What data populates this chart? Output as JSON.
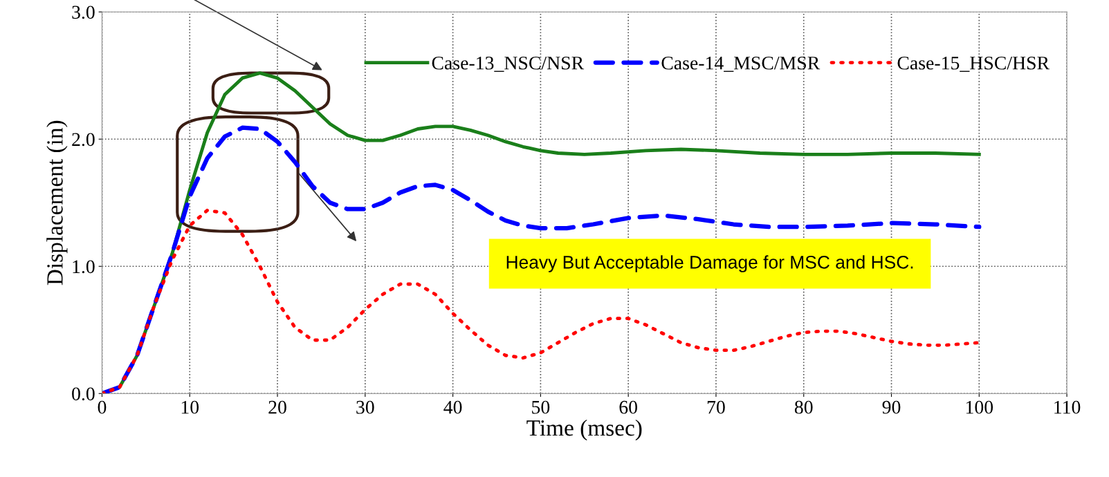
{
  "chart_data": {
    "type": "line",
    "xlabel": "Time (msec)",
    "ylabel": "Displacement (in)",
    "xlim": [
      0,
      110
    ],
    "xticks": [
      0,
      10,
      20,
      30,
      40,
      50,
      60,
      70,
      80,
      90,
      100,
      110
    ],
    "ylim": [
      0,
      3.0
    ],
    "yticks": [
      {
        "value": 0,
        "label": "0.0"
      },
      {
        "value": 1,
        "label": "1.0"
      },
      {
        "value": 2,
        "label": "2.0"
      },
      {
        "value": 3,
        "label": "3.0"
      }
    ],
    "grid": true,
    "legend": "top right",
    "marker": "none",
    "annotations": [
      "Heavy But Acceptable Damage for MSC and HSC."
    ],
    "series": [
      {
        "name": "Case-13_NSC/NSR",
        "color": "#1a7f1a",
        "line_style": "solid",
        "x": [
          0,
          2,
          4,
          6,
          8,
          10,
          12,
          14,
          16,
          18,
          20,
          22,
          24,
          26,
          28,
          30,
          32,
          34,
          36,
          38,
          40,
          42,
          44,
          46,
          48,
          50,
          52,
          55,
          58,
          62,
          66,
          70,
          75,
          80,
          85,
          90,
          95,
          100
        ],
        "values": [
          0,
          0.05,
          0.3,
          0.7,
          1.1,
          1.6,
          2.05,
          2.35,
          2.48,
          2.52,
          2.48,
          2.38,
          2.25,
          2.12,
          2.03,
          1.99,
          1.99,
          2.03,
          2.08,
          2.1,
          2.1,
          2.07,
          2.03,
          1.98,
          1.94,
          1.91,
          1.89,
          1.88,
          1.89,
          1.91,
          1.92,
          1.91,
          1.89,
          1.88,
          1.88,
          1.89,
          1.89,
          1.88
        ]
      },
      {
        "name": "Case-14_MSC/MSR",
        "color": "#0000ff",
        "line_style": "dashed",
        "x": [
          0,
          2,
          4,
          6,
          8,
          10,
          12,
          14,
          16,
          18,
          20,
          22,
          24,
          26,
          28,
          30,
          32,
          34,
          36,
          38,
          40,
          42,
          44,
          46,
          48,
          50,
          53,
          56,
          60,
          64,
          68,
          72,
          76,
          80,
          85,
          90,
          95,
          100
        ],
        "values": [
          0,
          0.05,
          0.3,
          0.7,
          1.1,
          1.55,
          1.85,
          2.02,
          2.09,
          2.08,
          1.98,
          1.82,
          1.63,
          1.5,
          1.45,
          1.45,
          1.5,
          1.58,
          1.63,
          1.64,
          1.6,
          1.52,
          1.43,
          1.36,
          1.32,
          1.3,
          1.3,
          1.33,
          1.38,
          1.4,
          1.37,
          1.33,
          1.31,
          1.31,
          1.32,
          1.34,
          1.33,
          1.31
        ]
      },
      {
        "name": "Case-15_HSC/HSR",
        "color": "#ff0000",
        "line_style": "dotted",
        "x": [
          0,
          2,
          4,
          6,
          8,
          10,
          12,
          14,
          16,
          18,
          20,
          22,
          24,
          26,
          28,
          30,
          32,
          34,
          36,
          38,
          40,
          42,
          44,
          46,
          48,
          50,
          52,
          54,
          56,
          58,
          60,
          62,
          64,
          66,
          68,
          70,
          72,
          74,
          76,
          78,
          80,
          82,
          84,
          86,
          88,
          90,
          92,
          94,
          96,
          98,
          100
        ],
        "values": [
          0,
          0.05,
          0.3,
          0.7,
          1.05,
          1.32,
          1.44,
          1.42,
          1.25,
          1.0,
          0.72,
          0.52,
          0.42,
          0.42,
          0.52,
          0.66,
          0.78,
          0.86,
          0.86,
          0.78,
          0.63,
          0.5,
          0.38,
          0.3,
          0.28,
          0.32,
          0.4,
          0.48,
          0.55,
          0.59,
          0.59,
          0.54,
          0.47,
          0.4,
          0.36,
          0.34,
          0.34,
          0.37,
          0.41,
          0.45,
          0.48,
          0.49,
          0.49,
          0.47,
          0.44,
          0.41,
          0.39,
          0.38,
          0.38,
          0.39,
          0.4
        ]
      }
    ]
  }
}
